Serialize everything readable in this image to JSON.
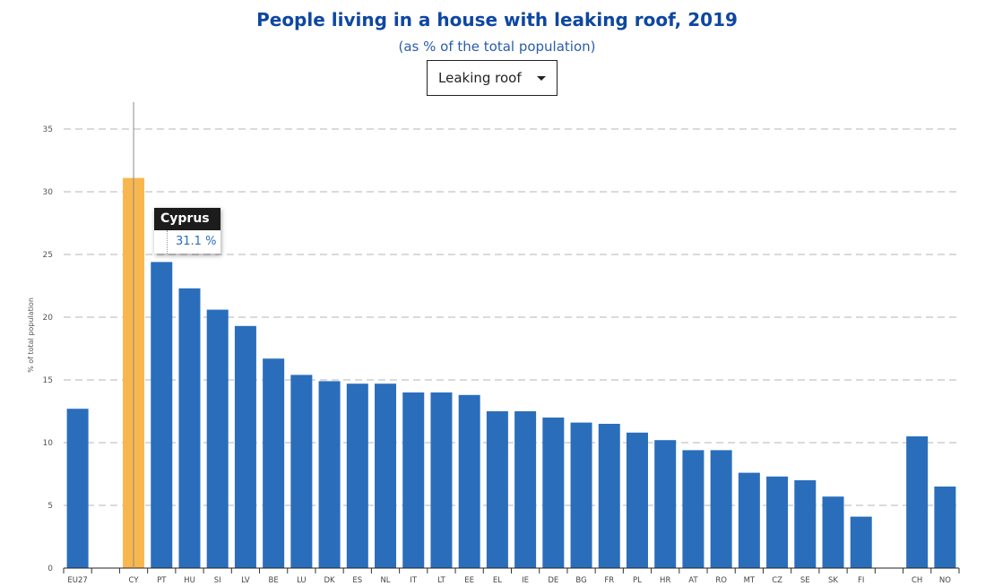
{
  "title": "People living in a house with leaking roof, 2019",
  "subtitle": "(as % of the total population)",
  "selector": {
    "selected": "Leaking roof"
  },
  "tooltip": {
    "country": "Cyprus",
    "value_text": "31.1 %"
  },
  "colors": {
    "bar": "#2a6ebb",
    "highlight": "#f8b74e",
    "title": "#0e47a1",
    "subtitle": "#2a5daa"
  },
  "chart_data": {
    "type": "bar",
    "title": "People living in a house with leaking roof, 2019",
    "subtitle": "(as % of the total population)",
    "ylabel": "% of total population",
    "xlabel": "",
    "ylim": [
      0,
      37
    ],
    "yticks": [
      0,
      5,
      10,
      15,
      20,
      25,
      30,
      35
    ],
    "grid": true,
    "legend": "none",
    "highlighted_category": "CY",
    "categories": [
      "EU27",
      "",
      "CY",
      "PT",
      "HU",
      "SI",
      "LV",
      "BE",
      "LU",
      "DK",
      "ES",
      "NL",
      "IT",
      "LT",
      "EE",
      "EL",
      "IE",
      "DE",
      "BG",
      "FR",
      "PL",
      "HR",
      "AT",
      "RO",
      "MT",
      "CZ",
      "SE",
      "SK",
      "FI",
      "",
      "CH",
      "NO"
    ],
    "values": [
      12.7,
      null,
      31.1,
      24.4,
      22.3,
      20.6,
      19.3,
      16.7,
      15.4,
      14.9,
      14.7,
      14.7,
      14.0,
      14.0,
      13.8,
      12.5,
      12.5,
      12.0,
      11.6,
      11.5,
      10.8,
      10.2,
      9.4,
      9.4,
      7.6,
      7.3,
      7.0,
      5.7,
      4.1,
      null,
      10.5,
      6.5
    ]
  }
}
